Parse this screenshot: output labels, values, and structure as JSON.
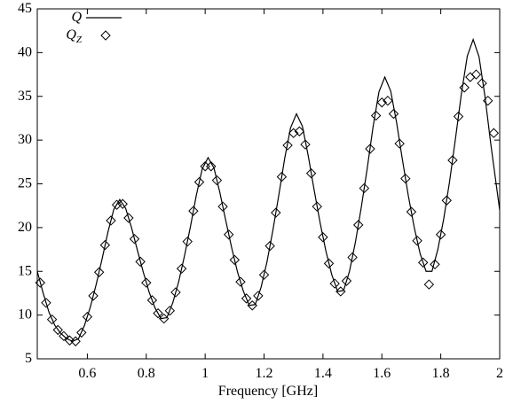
{
  "chart_data": {
    "type": "line",
    "xlabel": "Frequency [GHz]",
    "xlim": [
      0.43,
      2.0
    ],
    "ylim": [
      5,
      45
    ],
    "xticks": [
      0.6,
      0.8,
      1,
      1.2,
      1.4,
      1.6,
      1.8,
      2
    ],
    "yticks": [
      5,
      10,
      15,
      20,
      25,
      30,
      35,
      40,
      45
    ],
    "legend": "top-left",
    "series": [
      {
        "name": "Q",
        "kind": "line",
        "color": "#000000",
        "x": [
          0.43,
          0.45,
          0.47,
          0.49,
          0.51,
          0.53,
          0.55,
          0.57,
          0.59,
          0.61,
          0.63,
          0.65,
          0.67,
          0.69,
          0.71,
          0.73,
          0.75,
          0.77,
          0.79,
          0.81,
          0.83,
          0.85,
          0.87,
          0.89,
          0.91,
          0.93,
          0.95,
          0.97,
          0.99,
          1.01,
          1.03,
          1.05,
          1.07,
          1.09,
          1.11,
          1.13,
          1.15,
          1.17,
          1.19,
          1.21,
          1.23,
          1.25,
          1.27,
          1.29,
          1.31,
          1.33,
          1.35,
          1.37,
          1.39,
          1.41,
          1.43,
          1.45,
          1.47,
          1.49,
          1.51,
          1.53,
          1.55,
          1.57,
          1.59,
          1.61,
          1.63,
          1.65,
          1.67,
          1.69,
          1.71,
          1.73,
          1.75,
          1.77,
          1.79,
          1.81,
          1.83,
          1.85,
          1.87,
          1.89,
          1.91,
          1.93,
          1.95,
          1.97,
          1.99,
          2.0
        ],
        "values": [
          15,
          12.5,
          10.3,
          8.8,
          7.9,
          7.3,
          7.0,
          7.3,
          8.8,
          10.9,
          13.5,
          16.4,
          19.5,
          22.1,
          23.2,
          22.2,
          20.0,
          17.4,
          14.9,
          12.6,
          10.8,
          9.6,
          9.7,
          11.4,
          13.8,
          16.8,
          20.1,
          23.7,
          26.7,
          28.0,
          26.8,
          24.0,
          20.8,
          17.7,
          14.9,
          12.7,
          11.1,
          11.2,
          13.2,
          16.1,
          19.7,
          23.7,
          27.9,
          31.4,
          33.0,
          31.6,
          28.2,
          24.3,
          20.6,
          17.3,
          14.6,
          12.7,
          12.8,
          15.0,
          18.3,
          22.3,
          26.7,
          31.5,
          35.5,
          37.2,
          35.6,
          32.0,
          27.7,
          23.6,
          20.0,
          17.0,
          15.0,
          15.0,
          17.5,
          21.0,
          25.3,
          30.2,
          35.3,
          39.6,
          41.5,
          39.5,
          35.0,
          29.5,
          24.5,
          22.0
        ]
      },
      {
        "name": "Q_Z",
        "kind": "scatter",
        "color": "#000000",
        "x": [
          0.44,
          0.46,
          0.48,
          0.5,
          0.52,
          0.54,
          0.56,
          0.58,
          0.6,
          0.62,
          0.64,
          0.66,
          0.68,
          0.7,
          0.72,
          0.74,
          0.76,
          0.78,
          0.8,
          0.82,
          0.84,
          0.86,
          0.88,
          0.9,
          0.92,
          0.94,
          0.96,
          0.98,
          1.0,
          1.02,
          1.04,
          1.06,
          1.08,
          1.1,
          1.12,
          1.14,
          1.16,
          1.18,
          1.2,
          1.22,
          1.24,
          1.26,
          1.28,
          1.3,
          1.32,
          1.34,
          1.36,
          1.38,
          1.4,
          1.42,
          1.44,
          1.46,
          1.48,
          1.5,
          1.52,
          1.54,
          1.56,
          1.58,
          1.6,
          1.62,
          1.64,
          1.66,
          1.68,
          1.7,
          1.72,
          1.74,
          1.76,
          1.78,
          1.8,
          1.82,
          1.84,
          1.86,
          1.88,
          1.9,
          1.92,
          1.94,
          1.96,
          1.98
        ],
        "values": [
          13.7,
          11.4,
          9.5,
          8.3,
          7.6,
          7.1,
          7.0,
          8.0,
          9.8,
          12.2,
          14.9,
          18.0,
          20.8,
          22.6,
          22.7,
          21.1,
          18.7,
          16.1,
          13.7,
          11.7,
          10.2,
          9.6,
          10.5,
          12.6,
          15.3,
          18.4,
          21.9,
          25.2,
          27.0,
          27.0,
          25.4,
          22.4,
          19.2,
          16.3,
          13.8,
          11.9,
          11.1,
          12.2,
          14.6,
          17.9,
          21.7,
          25.8,
          29.4,
          30.8,
          31.0,
          29.5,
          26.2,
          22.4,
          18.9,
          15.9,
          13.6,
          12.7,
          13.9,
          16.6,
          20.3,
          24.5,
          29.0,
          32.8,
          34.3,
          34.5,
          33.0,
          29.6,
          25.6,
          21.8,
          18.5,
          16.0,
          13.5,
          15.8,
          19.2,
          23.1,
          27.7,
          32.7,
          36.0,
          37.2,
          37.5,
          36.5,
          34.5,
          30.8
        ]
      }
    ]
  }
}
